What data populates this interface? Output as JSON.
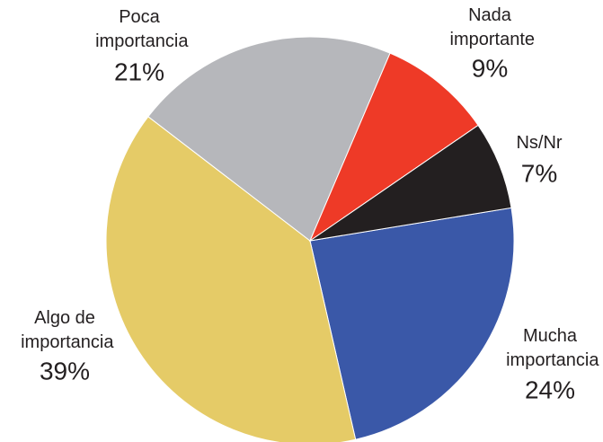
{
  "chart_data": {
    "type": "pie",
    "categories": [
      "Mucha importancia",
      "Algo de importancia",
      "Poca importancia",
      "Nada importante",
      "Ns/Nr"
    ],
    "values": [
      24,
      39,
      21,
      9,
      7
    ],
    "value_labels": [
      "24%",
      "39%",
      "21%",
      "9%",
      "7%"
    ],
    "colors": [
      "#3a58a8",
      "#e5cb67",
      "#b6b7bb",
      "#ee3a27",
      "#231f20"
    ]
  }
}
